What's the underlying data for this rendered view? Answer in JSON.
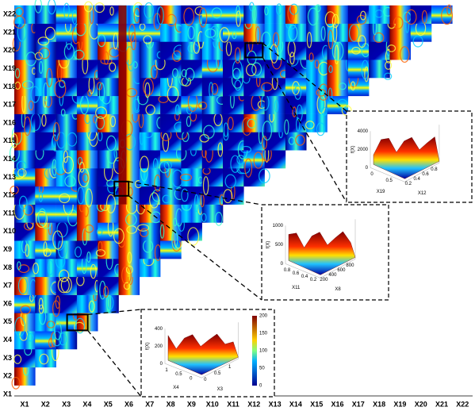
{
  "chart_data": {
    "type": "heatmap-matrix",
    "x_categories": [
      "X1",
      "X2",
      "X3",
      "X4",
      "X5",
      "X6",
      "X7",
      "X8",
      "X9",
      "X10",
      "X11",
      "X12",
      "X13",
      "X14",
      "X15",
      "X16",
      "X17",
      "X18",
      "X19",
      "X20",
      "X21",
      "X22"
    ],
    "y_categories": [
      "X1",
      "X2",
      "X3",
      "X4",
      "X5",
      "X6",
      "X7",
      "X8",
      "X9",
      "X10",
      "X11",
      "X12",
      "X13",
      "X14",
      "X15",
      "X16",
      "X17",
      "X18",
      "X19",
      "X20",
      "X21",
      "X22"
    ],
    "insets": [
      {
        "zlabel": "f(X)",
        "zticks": [
          0,
          2000,
          4000
        ],
        "xlabel": "X19",
        "xticks": [
          0,
          0.5
        ],
        "ylabel": "X12",
        "yticks": [
          0.2,
          0.4,
          0.6,
          0.8
        ]
      },
      {
        "zlabel": "f(X)",
        "zticks": [
          0,
          500,
          1000
        ],
        "xlabel": "X11",
        "xticks": [
          0.8,
          0.6,
          0.4,
          0.2
        ],
        "ylabel": "X8",
        "yticks": [
          200,
          400,
          600,
          800
        ]
      },
      {
        "zlabel": "f(X)",
        "zticks": [
          0,
          200,
          400
        ],
        "xlabel": "X4",
        "xticks": [
          1,
          0.5,
          0
        ],
        "ylabel": "X3",
        "yticks": [
          0,
          0.5,
          1
        ],
        "colorbar_ticks": [
          0,
          50,
          100,
          150,
          200
        ]
      }
    ]
  }
}
